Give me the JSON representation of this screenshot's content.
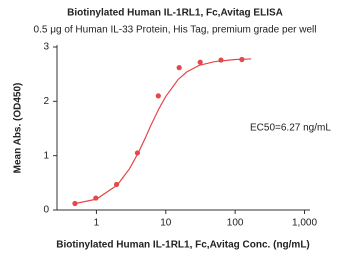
{
  "chart_data": {
    "type": "line",
    "title": "Biotinylated Human IL-1RL1, Fc,Avitag ELISA",
    "subtitle": "0.5 μg of Human IL-33 Protein, His Tag, premium grade per well",
    "xlabel": "Biotinylated Human IL-1RL1, Fc,Avitag Conc. (ng/mL)",
    "ylabel": "Mean Abs. (OD450)",
    "annotation": "EC50=6.27 ng/mL",
    "xscale": "log",
    "xlim": [
      0.27,
      1200
    ],
    "xticks": [
      1,
      10,
      100,
      {
        "value": 1000,
        "label": "1,000"
      }
    ],
    "ylim": [
      0,
      3
    ],
    "yticks": [
      0,
      1,
      2,
      3
    ],
    "series": [
      {
        "style": "markers",
        "color": "#e5474b",
        "x": [
          0.49,
          0.98,
          1.95,
          3.9,
          7.8,
          15.6,
          31.3,
          62.5,
          125
        ],
        "values": [
          0.12,
          0.22,
          0.47,
          1.05,
          2.1,
          2.62,
          2.72,
          2.76,
          2.77
        ]
      },
      {
        "style": "line",
        "color": "#e5474b",
        "x": [
          0.5,
          1,
          2,
          3,
          4,
          5,
          6,
          8,
          10,
          15,
          20,
          30,
          50,
          100,
          170
        ],
        "values": [
          0.12,
          0.2,
          0.46,
          0.76,
          1.05,
          1.31,
          1.54,
          1.87,
          2.09,
          2.4,
          2.54,
          2.66,
          2.73,
          2.77,
          2.78
        ]
      }
    ]
  }
}
